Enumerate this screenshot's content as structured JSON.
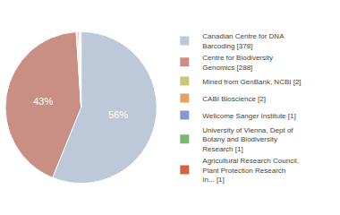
{
  "chart_data": {
    "type": "pie",
    "categories": [
      "Canadian Centre for DNA\nBarcoding [378]",
      "Centre for Biodiversity\nGenomics [288]",
      "Mined from GenBank, NCBI [2]",
      "CABI Bioscience [2]",
      "Wellcome Sanger Institute [1]",
      "University of Vienna, Dept of\nBotany and Biodiversity\nResearch [1]",
      "Agricultural Research Council,\nPlant Protection Research\nIn... [1]"
    ],
    "values": [
      56.25,
      42.857142857142854,
      0.2976190476190476,
      0.2976190476190476,
      0.1488095238095238,
      0.1488095238095238,
      0.1488095238095238
    ],
    "value_labels": [
      "56%",
      "43%",
      null,
      null,
      null,
      null,
      null
    ],
    "data_labels": true,
    "colors": [
      "#bdc9d8",
      "#c98e84",
      "#c8c87a",
      "#e8a060",
      "#8898c8",
      "#78b870",
      "#d86040"
    ],
    "legend": "right"
  }
}
